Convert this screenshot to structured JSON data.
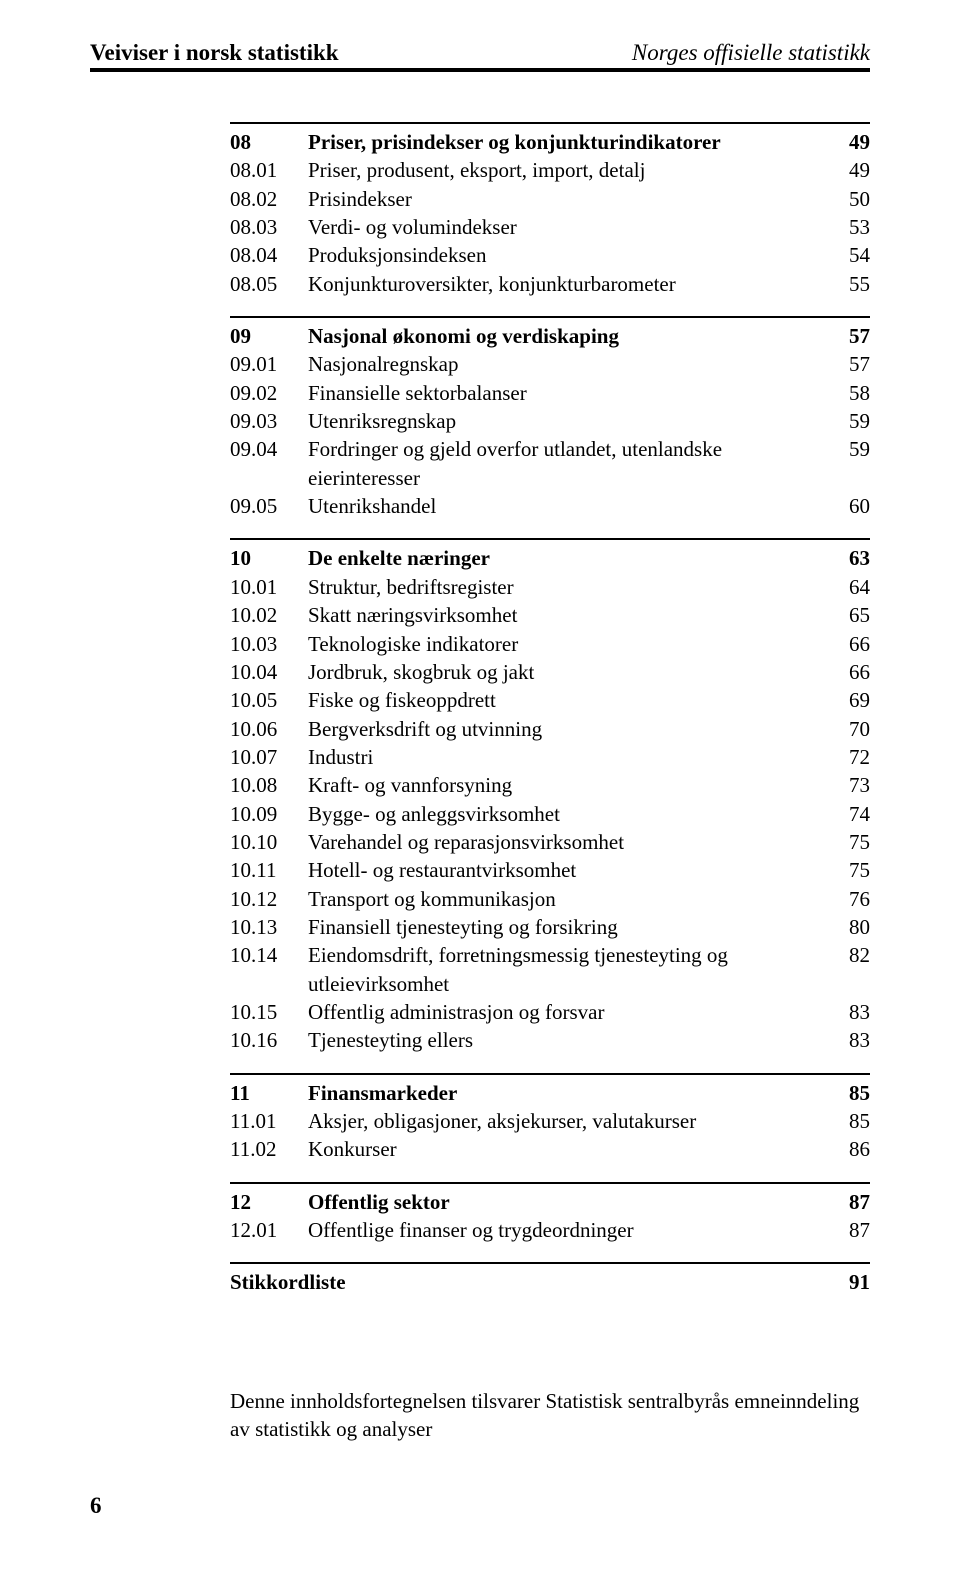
{
  "header": {
    "left": "Veiviser i norsk statistikk",
    "right": "Norges offisielle statistikk"
  },
  "sections": [
    {
      "rows": [
        {
          "code": "08",
          "label": "Priser, prisindekser og konjunkturindikatorer",
          "page": "49",
          "bold": true
        },
        {
          "code": "08.01",
          "label": "Priser, produsent, eksport, import, detalj",
          "page": "49"
        },
        {
          "code": "08.02",
          "label": "Prisindekser",
          "page": "50"
        },
        {
          "code": "08.03",
          "label": "Verdi- og volumindekser",
          "page": "53"
        },
        {
          "code": "08.04",
          "label": "Produksjonsindeksen",
          "page": "54"
        },
        {
          "code": "08.05",
          "label": "Konjunkturoversikter, konjunkturbarometer",
          "page": "55"
        }
      ]
    },
    {
      "rows": [
        {
          "code": "09",
          "label": "Nasjonal økonomi og verdiskaping",
          "page": "57",
          "bold": true
        },
        {
          "code": "09.01",
          "label": "Nasjonalregnskap",
          "page": "57"
        },
        {
          "code": "09.02",
          "label": "Finansielle sektorbalanser",
          "page": "58"
        },
        {
          "code": "09.03",
          "label": "Utenriksregnskap",
          "page": "59"
        },
        {
          "code": "09.04",
          "label": "Fordringer og gjeld overfor utlandet, utenlandske eierinteresser",
          "page": "59"
        },
        {
          "code": "09.05",
          "label": "Utenrikshandel",
          "page": "60"
        }
      ]
    },
    {
      "rows": [
        {
          "code": "10",
          "label": "De enkelte næringer",
          "page": "63",
          "bold": true
        },
        {
          "code": "10.01",
          "label": "Struktur, bedriftsregister",
          "page": "64"
        },
        {
          "code": "10.02",
          "label": "Skatt næringsvirksomhet",
          "page": "65"
        },
        {
          "code": "10.03",
          "label": "Teknologiske indikatorer",
          "page": "66"
        },
        {
          "code": "10.04",
          "label": "Jordbruk, skogbruk og jakt",
          "page": "66"
        },
        {
          "code": "10.05",
          "label": "Fiske og fiskeoppdrett",
          "page": "69"
        },
        {
          "code": "10.06",
          "label": "Bergverksdrift og utvinning",
          "page": "70"
        },
        {
          "code": "10.07",
          "label": "Industri",
          "page": "72"
        },
        {
          "code": "10.08",
          "label": "Kraft- og vannforsyning",
          "page": "73"
        },
        {
          "code": "10.09",
          "label": "Bygge- og anleggsvirksomhet",
          "page": "74"
        },
        {
          "code": "10.10",
          "label": "Varehandel og reparasjonsvirksomhet",
          "page": "75"
        },
        {
          "code": "10.11",
          "label": "Hotell- og restaurantvirksomhet",
          "page": "75"
        },
        {
          "code": "10.12",
          "label": "Transport og kommunikasjon",
          "page": "76"
        },
        {
          "code": "10.13",
          "label": "Finansiell tjenesteyting og forsikring",
          "page": "80"
        },
        {
          "code": "10.14",
          "label": "Eiendomsdrift, forretningsmessig tjenesteyting og utleievirksomhet",
          "page": "82"
        },
        {
          "code": "10.15",
          "label": "Offentlig administrasjon og forsvar",
          "page": "83"
        },
        {
          "code": "10.16",
          "label": "Tjenesteyting ellers",
          "page": "83"
        }
      ]
    },
    {
      "rows": [
        {
          "code": "11",
          "label": "Finansmarkeder",
          "page": "85",
          "bold": true
        },
        {
          "code": "11.01",
          "label": "Aksjer, obligasjoner, aksjekurser, valutakurser",
          "page": "85"
        },
        {
          "code": "11.02",
          "label": "Konkurser",
          "page": "86"
        }
      ]
    },
    {
      "rows": [
        {
          "code": "12",
          "label": "Offentlig sektor",
          "page": "87",
          "bold": true
        },
        {
          "code": "12.01",
          "label": "Offentlige finanser og trygdeordninger",
          "page": "87"
        }
      ]
    },
    {
      "rows": [
        {
          "code": "",
          "label": "Stikkordliste",
          "page": "91",
          "bold": true,
          "nocodegap": true
        }
      ]
    }
  ],
  "footnote": "Denne innholdsfortegnelsen tilsvarer Statistisk sentralbyrås emneinndeling av statistikk og analyser",
  "pageNumber": "6"
}
